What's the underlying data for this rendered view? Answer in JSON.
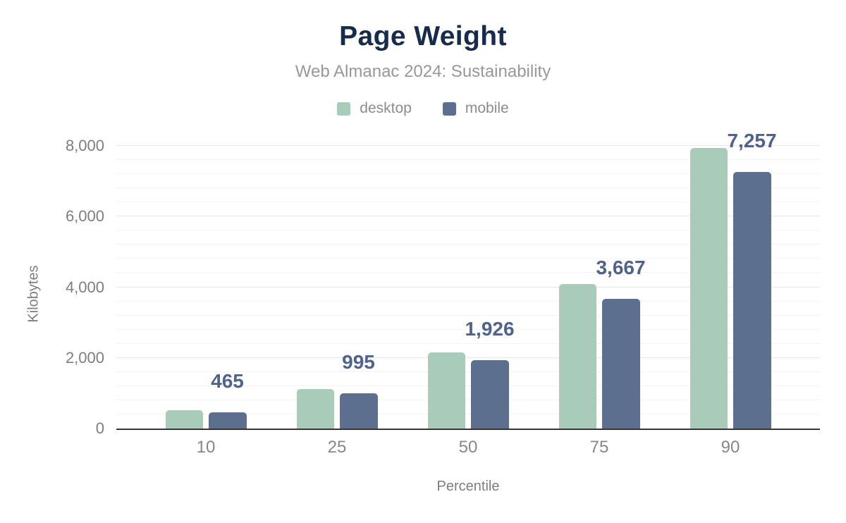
{
  "chart": {
    "title": "Page Weight",
    "subtitle": "Web Almanac 2024: Sustainability",
    "ylabel": "Kilobytes",
    "xlabel": "Percentile"
  },
  "legend": [
    {
      "label": "desktop",
      "color": "#a8ccb9"
    },
    {
      "label": "mobile",
      "color": "#5c6f8f"
    }
  ],
  "chart_data": {
    "type": "bar",
    "title": "Page Weight",
    "subtitle": "Web Almanac 2024: Sustainability",
    "xlabel": "Percentile",
    "ylabel": "Kilobytes",
    "categories": [
      "10",
      "25",
      "50",
      "75",
      "90"
    ],
    "series": [
      {
        "name": "desktop",
        "color": "#a8ccb9",
        "values": [
          510,
          1115,
          2150,
          4090,
          7950
        ]
      },
      {
        "name": "mobile",
        "color": "#5c6f8f",
        "values": [
          465,
          995,
          1926,
          3667,
          7257
        ],
        "data_labels": [
          "465",
          "995",
          "1,926",
          "3,667",
          "7,257"
        ]
      }
    ],
    "ylim": [
      0,
      8000
    ],
    "yticks": [
      0,
      2000,
      4000,
      6000,
      8000
    ],
    "ytick_labels": [
      "0",
      "2,000",
      "4,000",
      "6,000",
      "8,000"
    ],
    "minor_grid_step": 400,
    "major_grid_step": 2000,
    "grid": true,
    "legend_position": "top",
    "data_label_series": "mobile"
  },
  "colors": {
    "title": "#172b4d",
    "subtitle": "#989898",
    "axis_text": "#7e7e7e",
    "value_label": "#50638a",
    "baseline": "#363636",
    "gridline_minor": "#f3f3f3",
    "gridline_major": "#e9e9e9",
    "background": "#ffffff"
  }
}
